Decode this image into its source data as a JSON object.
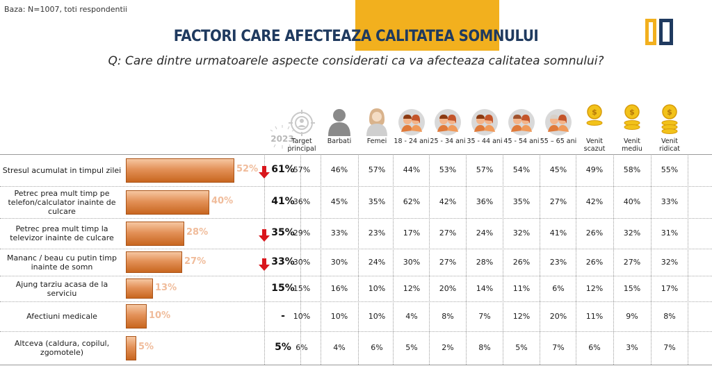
{
  "base_note": "Baza: N=1007, toti respondentii",
  "title": {
    "part1": "FACTORI CARE AFECTEAZA",
    "part2": "CALITATEA SOMNULUI"
  },
  "question": "Q: Care dintre urmatoarele aspecte considerati ca va afecteaza calitatea somnului?",
  "year_badge": "2023",
  "columns": [
    {
      "label": "Target principal",
      "icon": "target-group-icon"
    },
    {
      "label": "Barbati",
      "icon": "man-icon"
    },
    {
      "label": "Femei",
      "icon": "woman-icon"
    },
    {
      "label": "18 - 24 ani",
      "icon": "young-couple-icon"
    },
    {
      "label": "25 - 34 ani",
      "icon": "couple-icon"
    },
    {
      "label": "35 - 44 ani",
      "icon": "couple-icon"
    },
    {
      "label": "45 - 54 ani",
      "icon": "middle-aged-couple-icon"
    },
    {
      "label": "55 – 65 ani",
      "icon": "senior-couple-icon"
    },
    {
      "label": "Venit scazut",
      "icon": "coin-low-icon"
    },
    {
      "label": "Venit mediu",
      "icon": "coin-medium-icon"
    },
    {
      "label": "Venit ridicat",
      "icon": "coin-high-icon"
    }
  ],
  "colors": {
    "bar": "#e39158",
    "arrow": "#d9161c",
    "title": "#1f3a5f",
    "band": "#f2b01e",
    "logo_dark": "#1f3a5f"
  },
  "chart_data": {
    "type": "bar",
    "orientation": "horizontal",
    "categories": [
      "Stresul acumulat in timpul zilei",
      "Petrec prea mult timp pe telefon/calculator inainte de culcare",
      "Petrec prea mult timp la televizor inainte de culcare",
      "Mananc / beau cu putin timp inainte de somn",
      "Ajung tarziu acasa de la serviciu",
      "Afectiuni medicale",
      "Altceva (caldura, copilul, zgomotele)"
    ],
    "values": [
      52,
      40,
      28,
      27,
      13,
      10,
      5
    ],
    "value_labels": [
      "52%",
      "40%",
      "28%",
      "27%",
      "13%",
      "10%",
      "5%"
    ],
    "v2023": [
      "61%",
      "41%",
      "35%",
      "33%",
      "15%",
      "-",
      "5%"
    ],
    "down_arrow": [
      true,
      false,
      true,
      true,
      false,
      false,
      false
    ],
    "table": [
      [
        "57%",
        "46%",
        "57%",
        "44%",
        "53%",
        "57%",
        "54%",
        "45%",
        "49%",
        "58%",
        "55%"
      ],
      [
        "36%",
        "45%",
        "35%",
        "62%",
        "42%",
        "36%",
        "35%",
        "27%",
        "42%",
        "40%",
        "33%"
      ],
      [
        "29%",
        "33%",
        "23%",
        "17%",
        "27%",
        "24%",
        "32%",
        "41%",
        "26%",
        "32%",
        "31%"
      ],
      [
        "30%",
        "30%",
        "24%",
        "30%",
        "27%",
        "28%",
        "26%",
        "23%",
        "26%",
        "27%",
        "32%"
      ],
      [
        "15%",
        "16%",
        "10%",
        "12%",
        "20%",
        "14%",
        "11%",
        "6%",
        "12%",
        "15%",
        "17%"
      ],
      [
        "10%",
        "10%",
        "10%",
        "4%",
        "8%",
        "7%",
        "12%",
        "20%",
        "11%",
        "9%",
        "8%"
      ],
      [
        "6%",
        "4%",
        "6%",
        "5%",
        "2%",
        "8%",
        "5%",
        "7%",
        "6%",
        "3%",
        "7%"
      ]
    ],
    "xlim": [
      0,
      100
    ]
  }
}
